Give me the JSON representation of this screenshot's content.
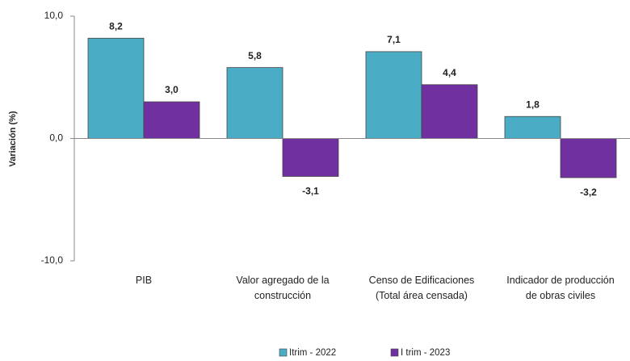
{
  "chart_data": {
    "type": "bar",
    "y_label": "Variación  (%)",
    "categories": [
      "PIB",
      "Valor agregado de la\nconstrucción",
      "Censo de Edificaciones\n(Total área censada)",
      "Indicador de producción\nde obras civiles"
    ],
    "series": [
      {
        "name": "Itrim - 2022",
        "color": "#4bacc6",
        "values": [
          8.2,
          5.8,
          7.1,
          1.8
        ],
        "value_labels": [
          "8,2",
          "5,8",
          "7,1",
          "1,8"
        ]
      },
      {
        "name": "I trim - 2023",
        "color": "#7030a0",
        "values": [
          3.0,
          -3.1,
          4.4,
          -3.2
        ],
        "value_labels": [
          "3,0",
          "-3,1",
          "4,4",
          "-3,2"
        ]
      }
    ],
    "ylim": [
      -10,
      10
    ],
    "yticks": [
      {
        "value": -10,
        "label": "-10,0"
      },
      {
        "value": 0,
        "label": "0,0"
      },
      {
        "value": 10,
        "label": "10,0"
      }
    ],
    "legend": "bottom"
  }
}
